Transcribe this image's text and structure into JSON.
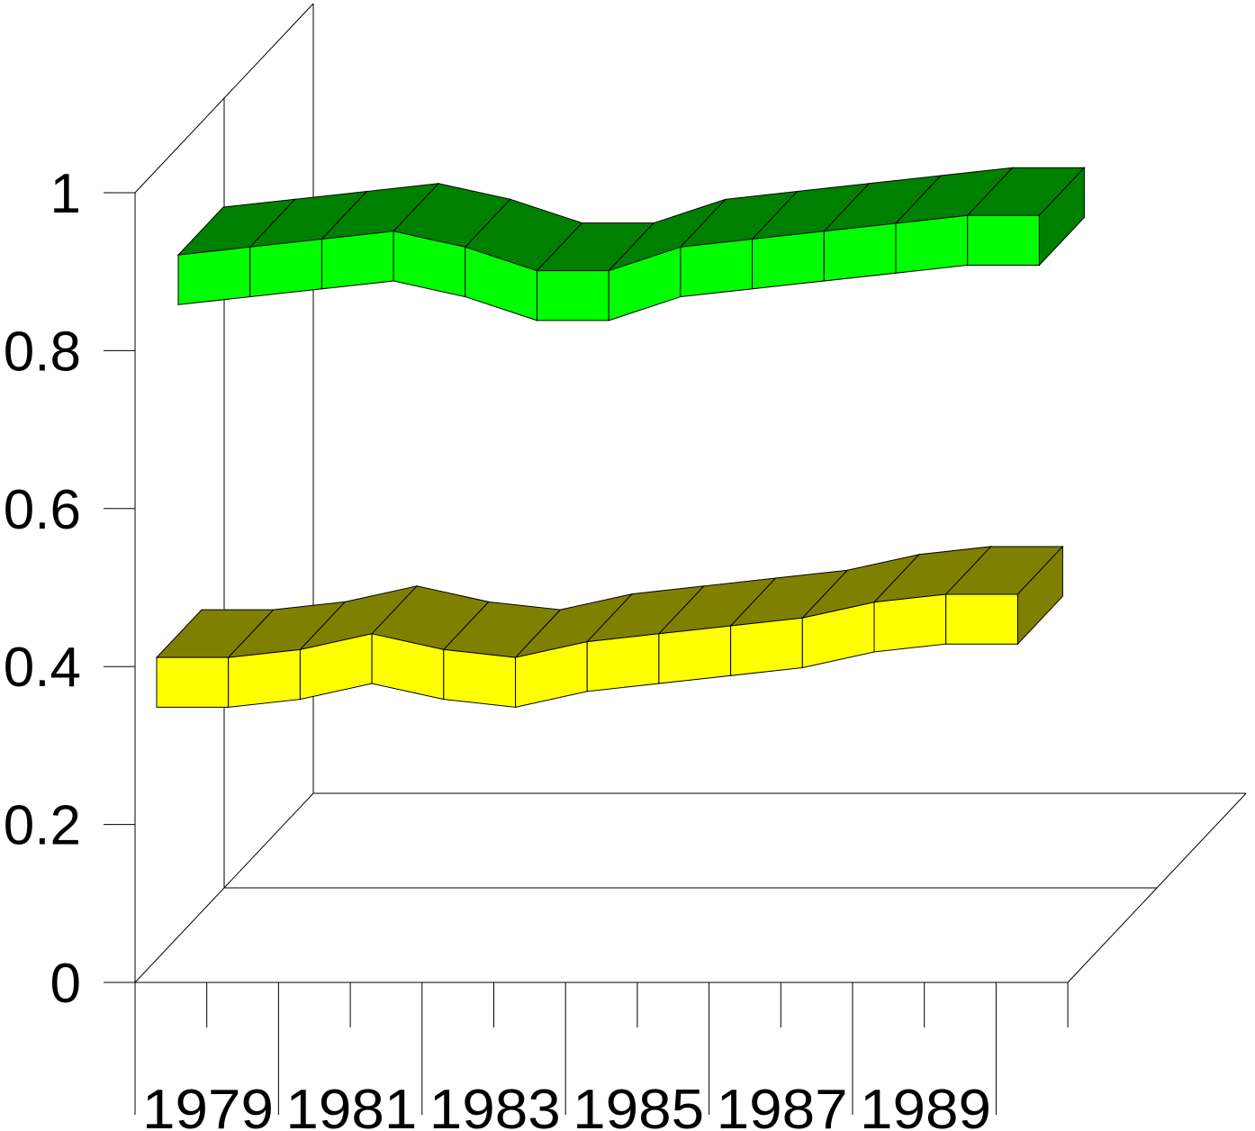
{
  "chart_data": {
    "type": "line",
    "style": "3d-ribbon",
    "x": [
      "1979",
      "1980",
      "1981",
      "1982",
      "1983",
      "1984",
      "1985",
      "1986",
      "1987",
      "1988",
      "1989",
      "1990"
    ],
    "x_tick_labels": [
      "1979",
      "1981",
      "1983",
      "1985",
      "1987",
      "1989"
    ],
    "y_ticks": [
      "0",
      "0.2",
      "0.4",
      "0.6",
      "0.8",
      "1"
    ],
    "ylim": [
      0,
      1
    ],
    "grid": false,
    "series": [
      {
        "values": [
          0.38,
          0.38,
          0.39,
          0.41,
          0.39,
          0.38,
          0.4,
          0.41,
          0.42,
          0.43,
          0.45,
          0.46
        ],
        "front_color": "#ffff00",
        "top_color": "#808000"
      },
      {
        "values": [
          0.77,
          0.78,
          0.79,
          0.8,
          0.78,
          0.75,
          0.75,
          0.78,
          0.79,
          0.8,
          0.81,
          0.82
        ],
        "front_color": "#00ff00",
        "top_color": "#008000"
      }
    ]
  }
}
